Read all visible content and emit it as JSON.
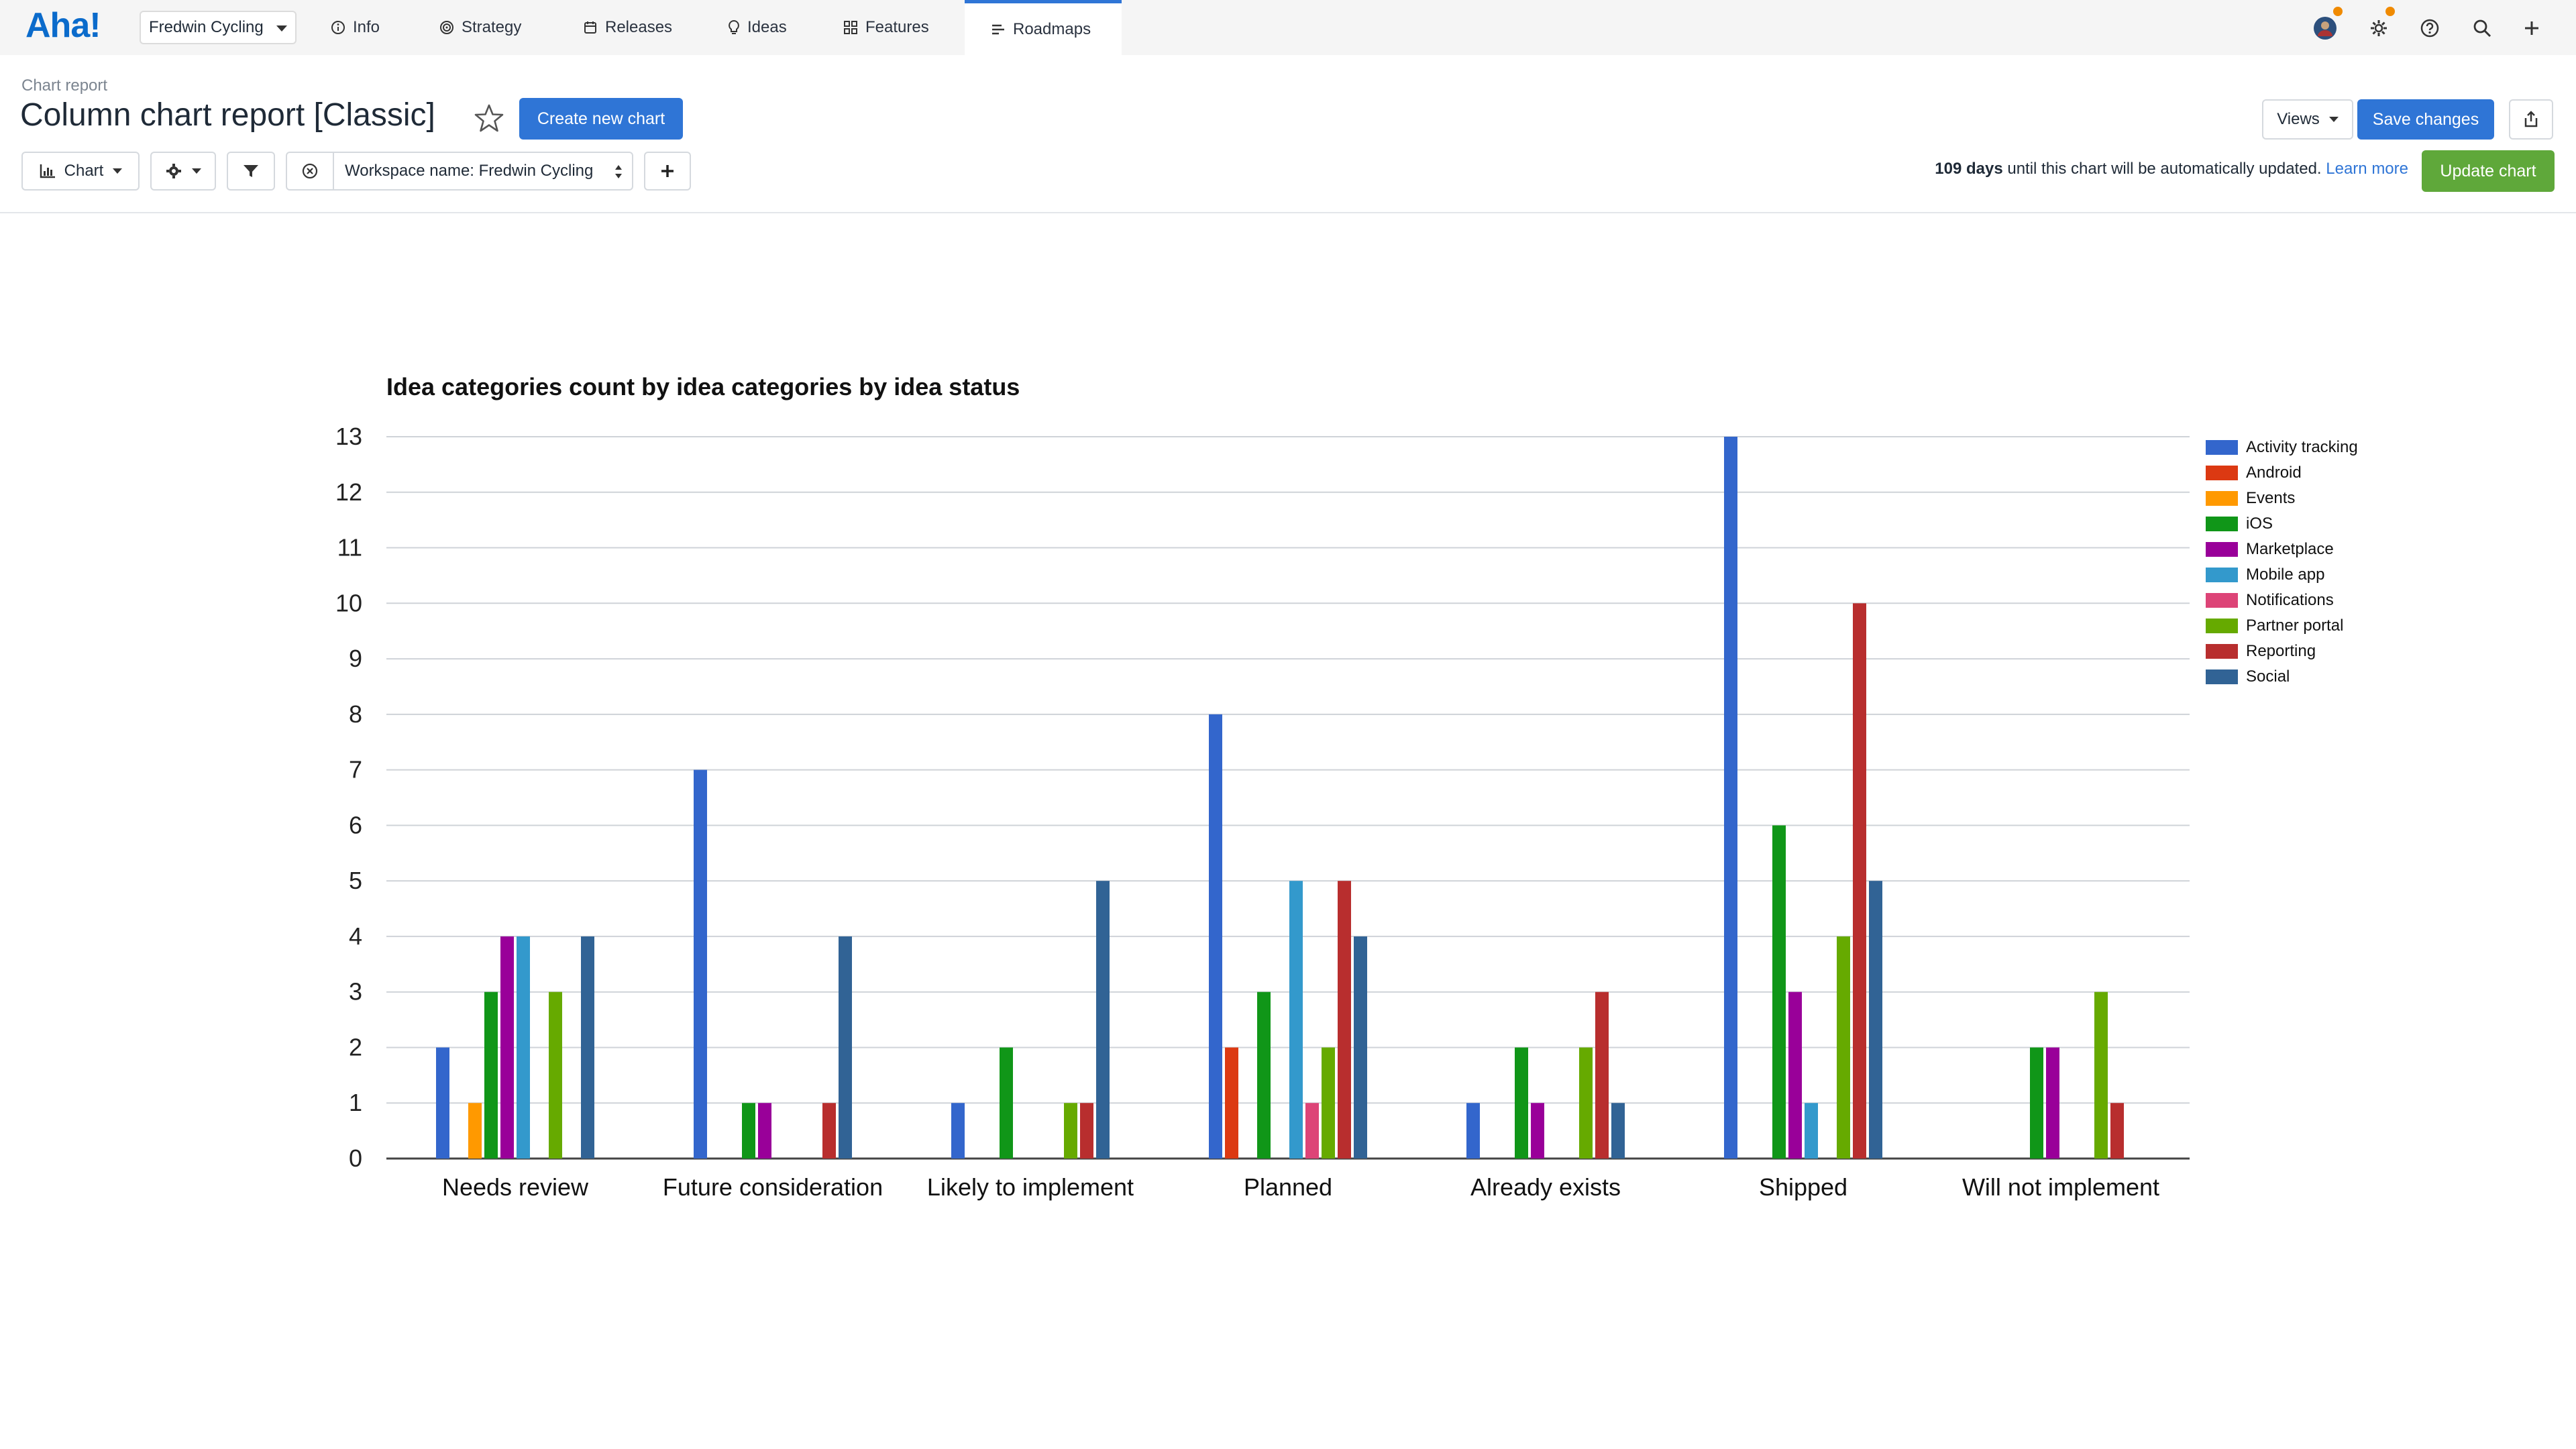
{
  "nav": {
    "logo": "Aha!",
    "workspace": "Fredwin Cycling",
    "tabs": [
      {
        "label": "Info",
        "icon": "info-icon"
      },
      {
        "label": "Strategy",
        "icon": "target-icon"
      },
      {
        "label": "Releases",
        "icon": "calendar-icon"
      },
      {
        "label": "Ideas",
        "icon": "lightbulb-icon"
      },
      {
        "label": "Features",
        "icon": "grid-icon"
      },
      {
        "label": "Roadmaps",
        "icon": "roadmap-icon",
        "active": true
      }
    ],
    "right_icons": [
      "avatar",
      "gear-icon",
      "help-icon",
      "search-icon",
      "plus-icon"
    ]
  },
  "header": {
    "breadcrumb": "Chart report",
    "title": "Column chart report [Classic]",
    "create_button": "Create new chart",
    "views_button": "Views",
    "save_button": "Save changes"
  },
  "toolbar": {
    "chart_button": "Chart",
    "filter_value": "Workspace name: Fredwin Cycling",
    "days_bold": "109 days",
    "days_text": " until this chart will be automatically updated. ",
    "learn_more": "Learn more",
    "update_button": "Update chart"
  },
  "colors": {
    "accent": "#2f75d6",
    "update": "#5fa83a",
    "notification_dot": "#f08a00"
  },
  "chart_data": {
    "type": "bar",
    "title": "Idea categories count by idea categories by idea status",
    "xlabel": "",
    "ylabel": "",
    "ylim": [
      0,
      13
    ],
    "yticks": [
      0,
      1,
      2,
      3,
      4,
      5,
      6,
      7,
      8,
      9,
      10,
      11,
      12,
      13
    ],
    "grid": true,
    "legend_position": "right",
    "categories": [
      "Needs review",
      "Future consideration",
      "Likely to implement",
      "Planned",
      "Already exists",
      "Shipped",
      "Will not implement"
    ],
    "series": [
      {
        "name": "Activity tracking",
        "color": "#3366cc",
        "values": [
          2,
          7,
          1,
          8,
          1,
          13,
          0
        ]
      },
      {
        "name": "Android",
        "color": "#dc3912",
        "values": [
          0,
          0,
          0,
          2,
          0,
          0,
          0
        ]
      },
      {
        "name": "Events",
        "color": "#ff9900",
        "values": [
          1,
          0,
          0,
          0,
          0,
          0,
          0
        ]
      },
      {
        "name": "iOS",
        "color": "#109618",
        "values": [
          3,
          1,
          2,
          3,
          2,
          6,
          2
        ]
      },
      {
        "name": "Marketplace",
        "color": "#990099",
        "values": [
          4,
          1,
          0,
          0,
          1,
          3,
          2
        ]
      },
      {
        "name": "Mobile app",
        "color": "#3399cc",
        "values": [
          4,
          0,
          0,
          5,
          0,
          1,
          0
        ]
      },
      {
        "name": "Notifications",
        "color": "#dd4477",
        "values": [
          0,
          0,
          0,
          1,
          0,
          0,
          0
        ]
      },
      {
        "name": "Partner portal",
        "color": "#66aa00",
        "values": [
          3,
          0,
          1,
          2,
          2,
          4,
          3
        ]
      },
      {
        "name": "Reporting",
        "color": "#b82e2e",
        "values": [
          0,
          1,
          1,
          5,
          3,
          10,
          1
        ]
      },
      {
        "name": "Social",
        "color": "#316395",
        "values": [
          4,
          4,
          5,
          4,
          1,
          5,
          0
        ]
      }
    ]
  }
}
